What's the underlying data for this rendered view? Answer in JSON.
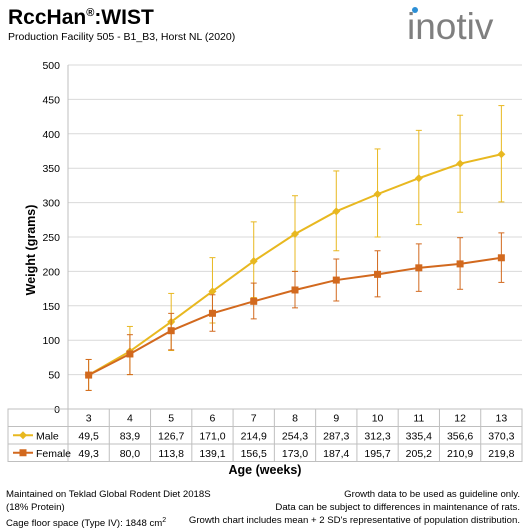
{
  "header": {
    "title": "RccHan",
    "title_reg": "®",
    "title_suffix": ":WIST",
    "subtitle": "Production Facility 505 - B1_B3, Horst NL (2020)",
    "logo_text": "inotiv"
  },
  "colors": {
    "male": "#E8B820",
    "female": "#D2691E",
    "logo_gray": "#7f7f7f",
    "logo_accent": "#2c8fd6"
  },
  "chart_data": {
    "type": "line",
    "xlabel": "Age (weeks)",
    "ylabel": "Weight (grams)",
    "ylim": [
      0,
      500
    ],
    "yticks": [
      "0",
      "50",
      "100",
      "150",
      "200",
      "250",
      "300",
      "350",
      "400",
      "450",
      "500"
    ],
    "categories": [
      "3",
      "4",
      "5",
      "6",
      "7",
      "8",
      "9",
      "10",
      "11",
      "12",
      "13"
    ],
    "grid": "horizontal",
    "legend": "table-below",
    "series": [
      {
        "name": "Male",
        "values": [
          49.5,
          83.9,
          126.7,
          171.0,
          214.9,
          254.3,
          287.3,
          312.3,
          335.4,
          356.6,
          370.3
        ],
        "labels": [
          "49,5",
          "83,9",
          "126,7",
          "171,0",
          "214,9",
          "254,3",
          "287,3",
          "312,3",
          "335,4",
          "356,6",
          "370,3"
        ],
        "err_lower": [
          27,
          50,
          85,
          125,
          162,
          200,
          230,
          250,
          268,
          286,
          301
        ],
        "err_upper": [
          72,
          120,
          168,
          220,
          272,
          310,
          346,
          378,
          405,
          427,
          441
        ],
        "marker": "diamond"
      },
      {
        "name": "Female",
        "values": [
          49.3,
          80.0,
          113.8,
          139.1,
          156.5,
          173.0,
          187.4,
          195.7,
          205.2,
          210.9,
          219.8
        ],
        "labels": [
          "49,3",
          "80,0",
          "113,8",
          "139,1",
          "156,5",
          "173,0",
          "187,4",
          "195,7",
          "205,2",
          "210,9",
          "219,8"
        ],
        "err_lower": [
          27,
          50,
          86,
          113,
          131,
          147,
          157,
          163,
          171,
          174,
          184
        ],
        "err_upper": [
          72,
          108,
          139,
          166,
          183,
          200,
          218,
          230,
          240,
          249,
          256
        ],
        "marker": "square"
      }
    ]
  },
  "footer": {
    "left_line1": "Maintained on Teklad Global Rodent Diet 2018S",
    "left_line2": "(18% Protein)",
    "left_line3": "Cage floor space (Type IV): 1848 cm",
    "left_line3_sup": "2",
    "right_line1": "Growth data to be used as guideline only.",
    "right_line2": "Data can be subject to differences in maintenance of rats.",
    "right_line3": "Growth chart includes mean + 2 SD's representative of population distribution."
  }
}
